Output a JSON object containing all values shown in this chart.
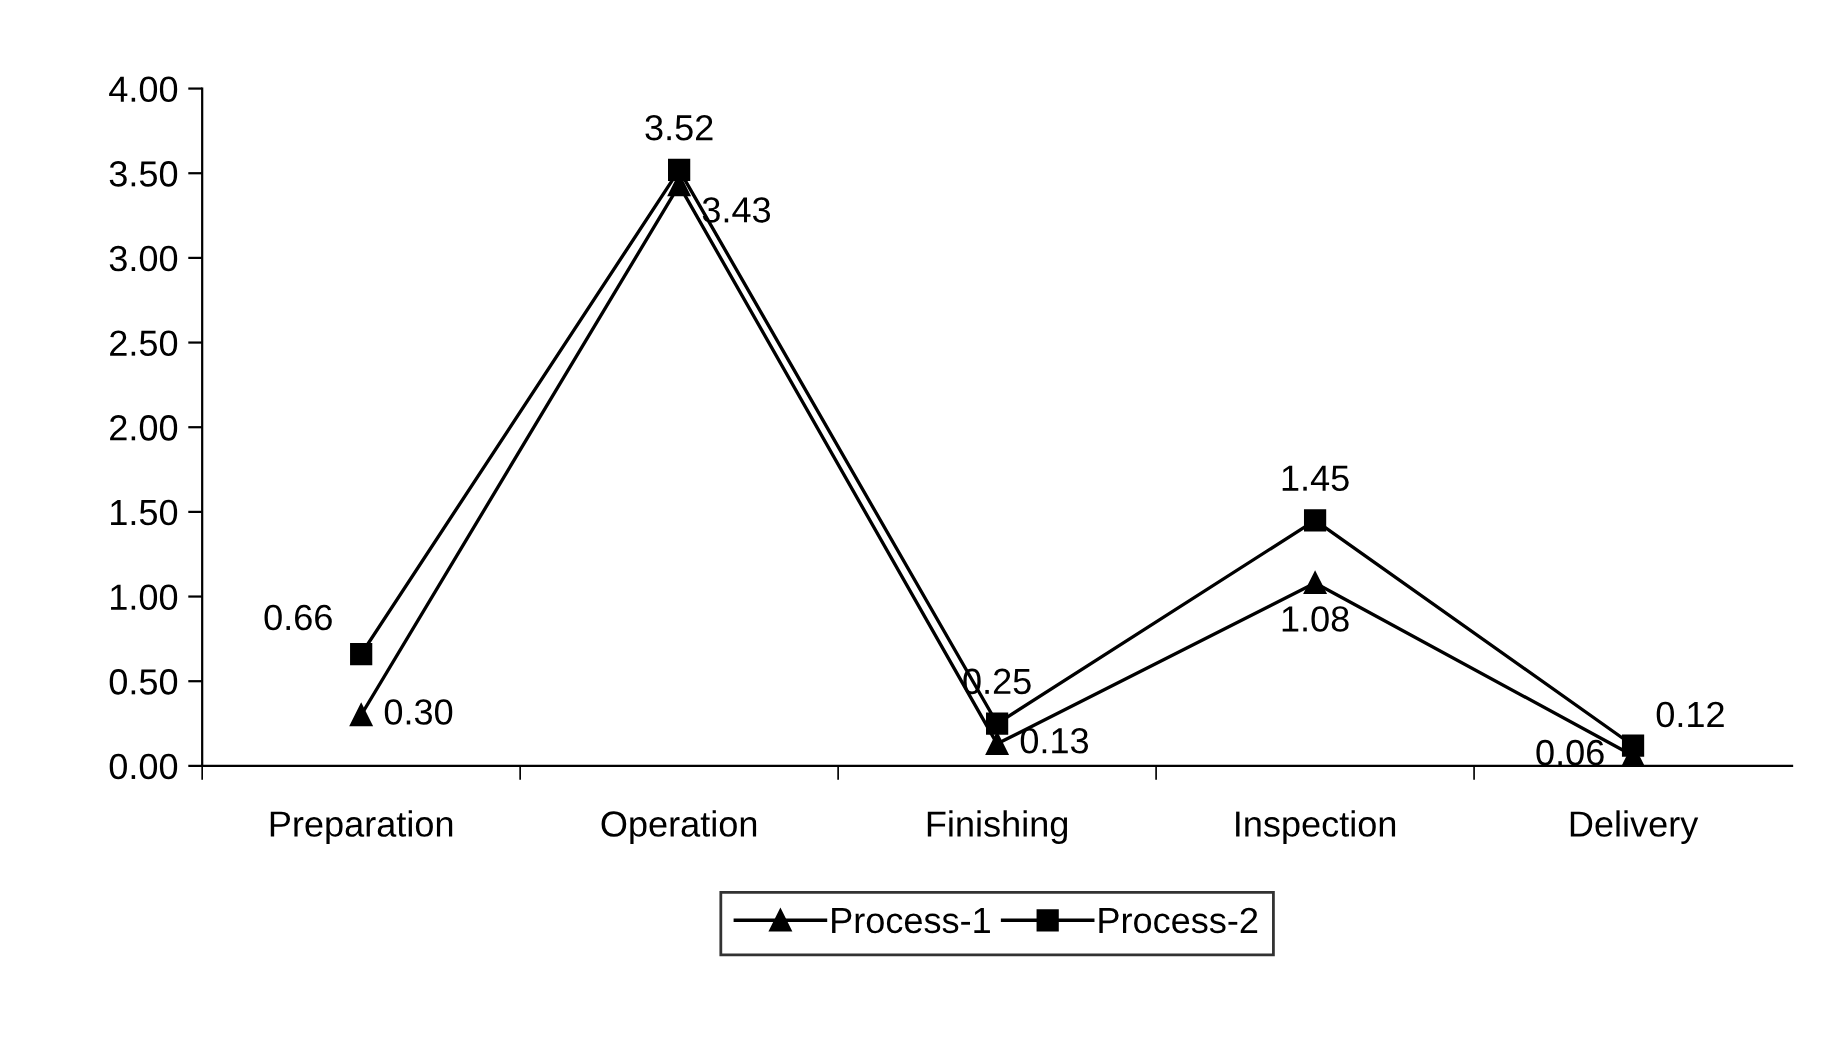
{
  "chart_data": {
    "type": "line",
    "categories": [
      "Preparation",
      "Operation",
      "Finishing",
      "Inspection",
      "Delivery"
    ],
    "series": [
      {
        "name": "Process-1",
        "color": "#000000",
        "marker": "triangle",
        "values": [
          0.3,
          3.43,
          0.13,
          1.08,
          0.06
        ],
        "value_labels": [
          "0.30",
          "3.43",
          "0.13",
          "1.08",
          "0.06"
        ]
      },
      {
        "name": "Process-2",
        "color": "#000000",
        "marker": "square",
        "values": [
          0.66,
          3.52,
          0.25,
          1.45,
          0.12
        ],
        "value_labels": [
          "0.66",
          "3.52",
          "0.25",
          "1.45",
          "0.12"
        ]
      }
    ],
    "ylim": [
      0,
      4
    ],
    "yticks": [
      {
        "value": 0,
        "label": "0.00"
      },
      {
        "value": 0.5,
        "label": "0.50"
      },
      {
        "value": 1,
        "label": "1.00"
      },
      {
        "value": 1.5,
        "label": "1.50"
      },
      {
        "value": 2,
        "label": "2.00"
      },
      {
        "value": 2.5,
        "label": "2.50"
      },
      {
        "value": 3,
        "label": "3.00"
      },
      {
        "value": 3.5,
        "label": "3.50"
      },
      {
        "value": 4,
        "label": "4.00"
      }
    ],
    "grid": false,
    "legend": "bottom",
    "line_style": "solid"
  }
}
